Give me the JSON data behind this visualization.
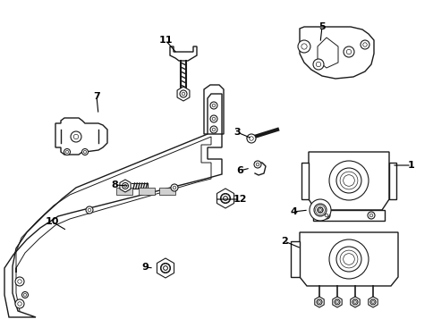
{
  "background_color": "#ffffff",
  "line_color": "#1a1a1a",
  "line_width": 1.0,
  "fig_width": 4.85,
  "fig_height": 3.57,
  "dpi": 100
}
